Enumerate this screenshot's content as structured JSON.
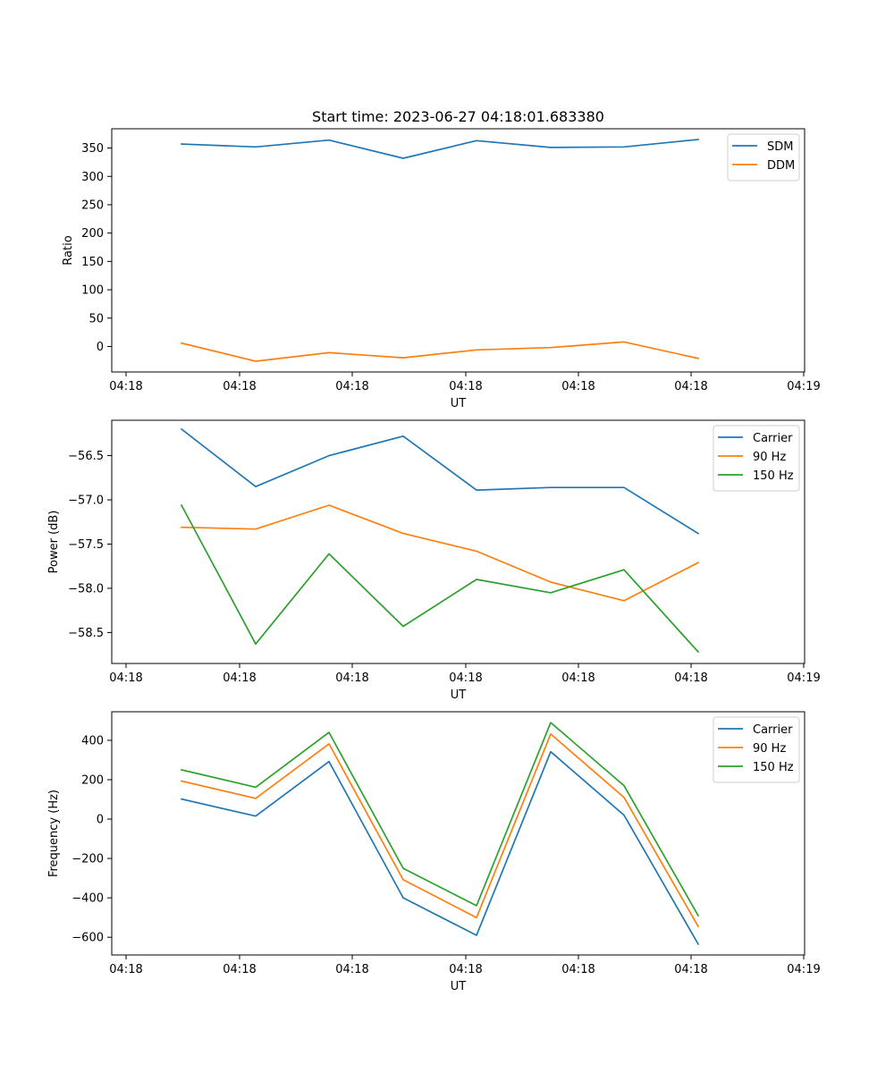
{
  "chart_data": [
    {
      "type": "line",
      "title": "Start time: 2023-06-27 04:18:01.683380",
      "xlabel": "UT",
      "ylabel": "Ratio",
      "x_tick_labels": [
        "04:18",
        "04:18",
        "04:18",
        "04:18",
        "04:18",
        "04:18",
        "04:19"
      ],
      "y_ticks": [
        0,
        50,
        100,
        150,
        200,
        250,
        300,
        350
      ],
      "y_tick_labels": [
        "0",
        "50",
        "100",
        "150",
        "200",
        "250",
        "300",
        "350"
      ],
      "ylim": [
        -45,
        384
      ],
      "grid": false,
      "legend_position": "upper right",
      "series": [
        {
          "name": "SDM",
          "color": "#1f77b4",
          "values": [
            357,
            352,
            364,
            332,
            363,
            351,
            352,
            365
          ]
        },
        {
          "name": "DDM",
          "color": "#ff7f0e",
          "values": [
            6,
            -26,
            -11,
            -20,
            -6,
            -2,
            8,
            -21
          ]
        }
      ]
    },
    {
      "type": "line",
      "title": "",
      "xlabel": "UT",
      "ylabel": "Power (dB)",
      "x_tick_labels": [
        "04:18",
        "04:18",
        "04:18",
        "04:18",
        "04:18",
        "04:18",
        "04:19"
      ],
      "y_ticks": [
        -58.5,
        -58.0,
        -57.5,
        -57.0,
        -56.5
      ],
      "y_tick_labels": [
        "−58.5",
        "−58.0",
        "−57.5",
        "−57.0",
        "−56.5"
      ],
      "ylim": [
        -58.85,
        -56.1
      ],
      "grid": false,
      "legend_position": "upper right",
      "series": [
        {
          "name": "Carrier",
          "color": "#1f77b4",
          "values": [
            -56.2,
            -56.85,
            -56.5,
            -56.28,
            -56.89,
            -56.86,
            -56.86,
            -57.38
          ]
        },
        {
          "name": "90 Hz",
          "color": "#ff7f0e",
          "values": [
            -57.31,
            -57.33,
            -57.06,
            -57.38,
            -57.58,
            -57.93,
            -58.14,
            -57.71
          ]
        },
        {
          "name": "150 Hz",
          "color": "#2ca02c",
          "values": [
            -57.06,
            -58.63,
            -57.61,
            -58.43,
            -57.9,
            -58.05,
            -57.79,
            -58.72
          ]
        }
      ]
    },
    {
      "type": "line",
      "title": "",
      "xlabel": "UT",
      "ylabel": "Frequency (Hz)",
      "x_tick_labels": [
        "04:18",
        "04:18",
        "04:18",
        "04:18",
        "04:18",
        "04:18",
        "04:19"
      ],
      "y_ticks": [
        -600,
        -400,
        -200,
        0,
        200,
        400
      ],
      "y_tick_labels": [
        "−600",
        "−400",
        "−200",
        "0",
        "200",
        "400"
      ],
      "ylim": [
        -690,
        545
      ],
      "grid": false,
      "legend_position": "upper right",
      "series": [
        {
          "name": "Carrier",
          "color": "#1f77b4",
          "values": [
            102,
            15,
            292,
            -400,
            -590,
            342,
            20,
            -635
          ]
        },
        {
          "name": "90 Hz",
          "color": "#ff7f0e",
          "values": [
            193,
            105,
            382,
            -308,
            -500,
            432,
            110,
            -545
          ]
        },
        {
          "name": "150 Hz",
          "color": "#2ca02c",
          "values": [
            250,
            162,
            440,
            -250,
            -440,
            490,
            170,
            -490
          ]
        }
      ]
    }
  ]
}
